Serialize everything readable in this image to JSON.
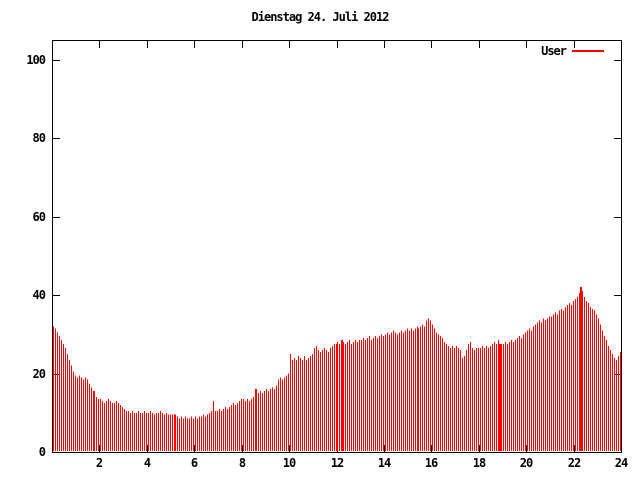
{
  "title": "Dienstag 24. Juli 2012",
  "legend": {
    "label": "User",
    "position": "top-right-inside",
    "sample_color": "#ff0000"
  },
  "colors": {
    "background": "#ffffff",
    "bar": "#ff0000",
    "axis": "#000000",
    "text": "#000000"
  },
  "chart_data": {
    "type": "bar",
    "style": "impulses",
    "title": "Dienstag 24. Juli 2012",
    "series_name": "User",
    "xlabel": "",
    "ylabel": "",
    "xlim": [
      0,
      24
    ],
    "ylim": [
      0,
      105
    ],
    "xticks": [
      2,
      4,
      6,
      8,
      10,
      12,
      14,
      16,
      18,
      20,
      22,
      24
    ],
    "yticks": [
      0,
      20,
      40,
      60,
      80,
      100
    ],
    "grid": false,
    "x_start_hour": 0,
    "x_step_hours": 0.0833,
    "bar_color": "#ff0000",
    "wide_bar_indices": [
      20,
      61,
      102,
      146,
      226,
      267
    ],
    "values": [
      32,
      31.5,
      30.5,
      29.5,
      28.5,
      27.5,
      26.5,
      25,
      23.5,
      22,
      20.5,
      19.5,
      19,
      19.5,
      19,
      18.5,
      19,
      18.5,
      17.5,
      16.5,
      15.5,
      15,
      14,
      13.5,
      13.5,
      13,
      12.5,
      13,
      13.5,
      13,
      12.5,
      12.5,
      13,
      12.5,
      12,
      11.5,
      11,
      10.5,
      10.5,
      10,
      10.5,
      10,
      10,
      10.5,
      10,
      10,
      10.5,
      10,
      10,
      10.5,
      10,
      9.5,
      10,
      10,
      10.5,
      10,
      9.5,
      10,
      9.5,
      9.5,
      9.5,
      9.5,
      9.5,
      9,
      8.5,
      9,
      8.5,
      9,
      8.5,
      8.5,
      9,
      8.5,
      9,
      8.5,
      9,
      9,
      9.5,
      9,
      9.5,
      10,
      10.5,
      13,
      10.5,
      10.5,
      11,
      10.5,
      11,
      11.5,
      11,
      11.5,
      12,
      12.5,
      12,
      12.5,
      13,
      13.5,
      13.5,
      13,
      13.5,
      13,
      13.5,
      14,
      16,
      15.5,
      15,
      15.5,
      15,
      15.5,
      16,
      15.5,
      16,
      16.5,
      16,
      17,
      18.5,
      19,
      18.5,
      19,
      19.5,
      20,
      25,
      23.5,
      24,
      23.5,
      24.5,
      24,
      23.5,
      24.5,
      23.5,
      24,
      24.5,
      25,
      26.5,
      27,
      26,
      25.5,
      26,
      26.5,
      26,
      25.5,
      26.5,
      27,
      27.5,
      27.5,
      28,
      27.5,
      28.5,
      28,
      27.5,
      28,
      28.5,
      27.5,
      28,
      28.5,
      28,
      28.5,
      28.5,
      29,
      28.5,
      29,
      29.5,
      28.5,
      29,
      29.5,
      29,
      29.5,
      30,
      29.5,
      30,
      30.5,
      30,
      30.5,
      31,
      30.5,
      30,
      30.5,
      31,
      30.5,
      31,
      31.5,
      31,
      31.5,
      31,
      31.5,
      32,
      31.5,
      32,
      32.5,
      32,
      33.5,
      34,
      33.5,
      32.5,
      31.5,
      30.5,
      30,
      29.5,
      29,
      28,
      27.5,
      27,
      26.5,
      27,
      26.5,
      27,
      26.5,
      26,
      24,
      24.5,
      26,
      27.5,
      28,
      26.5,
      26,
      26.5,
      26.5,
      26.5,
      27,
      26.5,
      27,
      26.5,
      27,
      27.5,
      28,
      27.5,
      28.5,
      27.5,
      27.5,
      27.5,
      28,
      27.5,
      28,
      28.5,
      28,
      28.5,
      29,
      29.5,
      29,
      30,
      30.5,
      31,
      31.5,
      31,
      32,
      32.5,
      33,
      33.5,
      33,
      34,
      33.5,
      34,
      34.5,
      34.5,
      35,
      35.5,
      35,
      36,
      36.5,
      36,
      37,
      37.5,
      38,
      37.5,
      38.5,
      39,
      39.5,
      40.5,
      42,
      41,
      39.5,
      38.5,
      38,
      37,
      36.5,
      36,
      35,
      34,
      32.5,
      31,
      29.5,
      28.5,
      27,
      26,
      25,
      24,
      23.5,
      24.5,
      25.5
    ]
  }
}
